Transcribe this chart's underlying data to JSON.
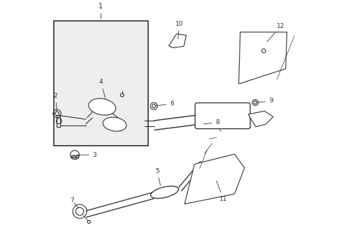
{
  "title": "",
  "background_color": "#ffffff",
  "line_color": "#333333",
  "label_color": "#000000",
  "fig_width": 4.89,
  "fig_height": 3.6,
  "dpi": 100
}
